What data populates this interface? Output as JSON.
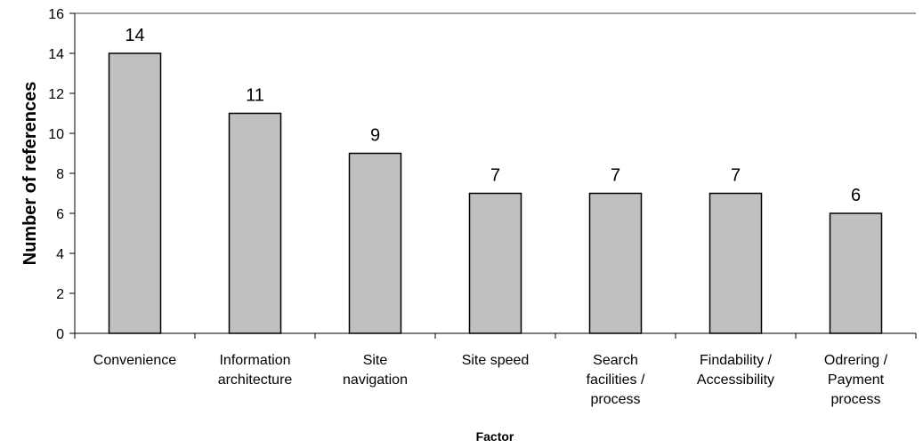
{
  "chart_data": {
    "type": "bar",
    "xlabel": "Factor",
    "ylabel": "Number of references",
    "categories": [
      "Convenience",
      "Information\narchitecture",
      "Site\nnavigation",
      "Site speed",
      "Search\nfacilities /\nprocess",
      "Findability /\nAccessibility",
      "Odrering /\nPayment\nprocess"
    ],
    "values": [
      14,
      11,
      9,
      7,
      7,
      7,
      6
    ],
    "color": "#c0c0c0",
    "ylim": [
      0,
      16
    ],
    "yticks": [
      0,
      2,
      4,
      6,
      8,
      10,
      12,
      14,
      16
    ],
    "grid": false
  }
}
